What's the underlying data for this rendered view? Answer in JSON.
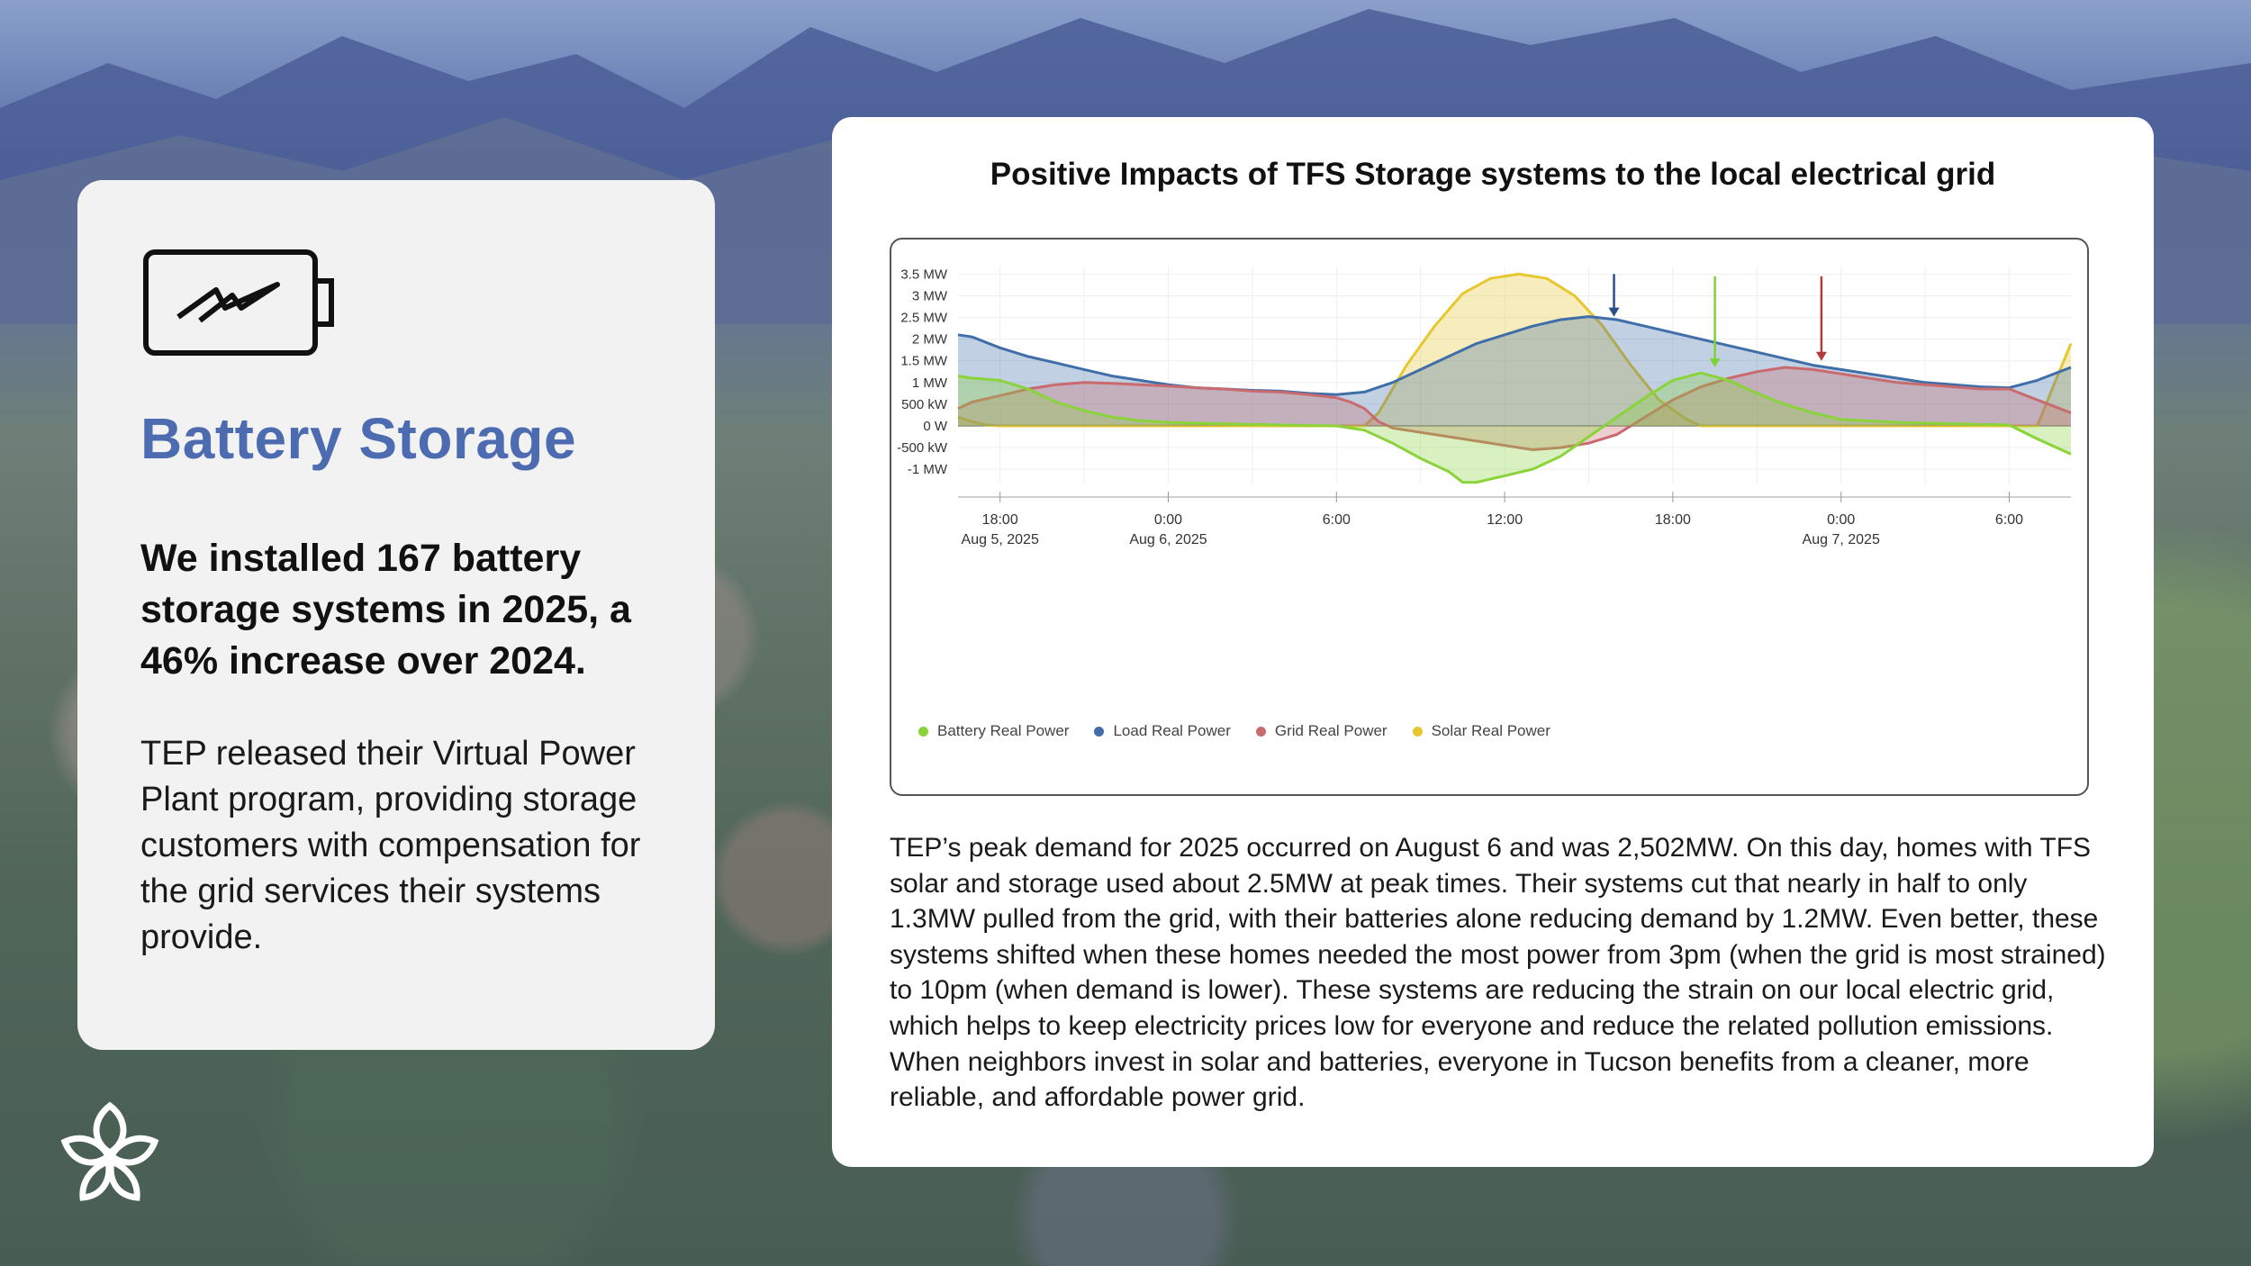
{
  "left_card": {
    "icon": "battery-icon",
    "title": "Battery Storage",
    "headline": "We installed 167 battery storage systems in 2025, a 46% increase over 2024.",
    "body": "TEP released their Virtual Power Plant program, providing storage customers with compensation for the grid services their systems provide."
  },
  "logo": {
    "icon": "flower-logo-icon"
  },
  "right_card": {
    "description": "TEP’s peak demand for 2025 occurred on August 6 and was 2,502MW. On this day, homes with TFS solar and storage used about 2.5MW at peak times. Their systems cut that nearly in half to only 1.3MW pulled from the grid, with their batteries alone reducing demand by 1.2MW. Even better, these systems shifted when these homes needed the most power from 3pm (when the grid is most strained) to 10pm (when demand is lower). These systems are reducing the strain on our local electric grid, which helps to keep electricity prices low for everyone and reduce the related pollution emissions. When neighbors invest in solar and batteries, everyone in Tucson benefits from a cleaner, more reliable, and affordable power grid."
  },
  "chart_data": {
    "type": "area",
    "title": "Positive Impacts of TFS Storage systems to the local electrical grid",
    "xlabel": "",
    "ylabel": "",
    "x_unit": "hours since 18:00 Aug 5, 2025",
    "xlim": [
      -1.5,
      38.2
    ],
    "ylim": [
      -1.35,
      3.55
    ],
    "y_ticks": [
      {
        "v": 3.5,
        "label": "3.5 MW"
      },
      {
        "v": 3,
        "label": "3 MW"
      },
      {
        "v": 2.5,
        "label": "2.5 MW"
      },
      {
        "v": 2,
        "label": "2 MW"
      },
      {
        "v": 1.5,
        "label": "1.5 MW"
      },
      {
        "v": 1,
        "label": "1 MW"
      },
      {
        "v": 0.5,
        "label": "500 kW"
      },
      {
        "v": 0,
        "label": "0 W"
      },
      {
        "v": -0.5,
        "label": "-500 kW"
      },
      {
        "v": -1,
        "label": "-1 MW"
      }
    ],
    "x_ticks": [
      {
        "v": 0,
        "label": "18:00",
        "sub": "Aug 5, 2025"
      },
      {
        "v": 6,
        "label": "0:00",
        "sub": "Aug 6, 2025"
      },
      {
        "v": 12,
        "label": "6:00",
        "sub": ""
      },
      {
        "v": 18,
        "label": "12:00",
        "sub": ""
      },
      {
        "v": 24,
        "label": "18:00",
        "sub": ""
      },
      {
        "v": 30,
        "label": "0:00",
        "sub": "Aug 7, 2025"
      },
      {
        "v": 36,
        "label": "6:00",
        "sub": ""
      }
    ],
    "series": [
      {
        "name": "Solar Real Power",
        "color": "#e6c72f",
        "points": [
          [
            -1.5,
            0.2
          ],
          [
            -1,
            0.1
          ],
          [
            -0.5,
            0.02
          ],
          [
            0,
            0
          ],
          [
            13,
            0
          ],
          [
            13.5,
            0.3
          ],
          [
            14.5,
            1.4
          ],
          [
            15.5,
            2.3
          ],
          [
            16.5,
            3.05
          ],
          [
            17.5,
            3.4
          ],
          [
            18.5,
            3.5
          ],
          [
            19.5,
            3.4
          ],
          [
            20.5,
            3.0
          ],
          [
            21.5,
            2.3
          ],
          [
            22.5,
            1.4
          ],
          [
            23.5,
            0.6
          ],
          [
            24.5,
            0.15
          ],
          [
            25,
            0
          ],
          [
            37,
            0
          ],
          [
            37.5,
            0.8
          ],
          [
            38.2,
            1.9
          ]
        ]
      },
      {
        "name": "Load Real Power",
        "color": "#3f6ea8",
        "points": [
          [
            -1.5,
            2.1
          ],
          [
            -1,
            2.05
          ],
          [
            0,
            1.8
          ],
          [
            1,
            1.6
          ],
          [
            2,
            1.45
          ],
          [
            3,
            1.3
          ],
          [
            4,
            1.15
          ],
          [
            5,
            1.05
          ],
          [
            6,
            0.95
          ],
          [
            7,
            0.88
          ],
          [
            8,
            0.85
          ],
          [
            9,
            0.82
          ],
          [
            10,
            0.8
          ],
          [
            11,
            0.75
          ],
          [
            12,
            0.72
          ],
          [
            13,
            0.78
          ],
          [
            14,
            1.0
          ],
          [
            15,
            1.3
          ],
          [
            16,
            1.6
          ],
          [
            17,
            1.9
          ],
          [
            18,
            2.1
          ],
          [
            19,
            2.3
          ],
          [
            20,
            2.45
          ],
          [
            21,
            2.52
          ],
          [
            22,
            2.45
          ],
          [
            23,
            2.3
          ],
          [
            24,
            2.15
          ],
          [
            25,
            2.0
          ],
          [
            26,
            1.85
          ],
          [
            27,
            1.7
          ],
          [
            28,
            1.55
          ],
          [
            29,
            1.4
          ],
          [
            30,
            1.3
          ],
          [
            31,
            1.2
          ],
          [
            32,
            1.1
          ],
          [
            33,
            1.0
          ],
          [
            34,
            0.95
          ],
          [
            35,
            0.9
          ],
          [
            36,
            0.88
          ],
          [
            37,
            1.05
          ],
          [
            38.2,
            1.35
          ]
        ]
      },
      {
        "name": "Grid Real Power",
        "color": "#c96a6e",
        "points": [
          [
            -1.5,
            0.4
          ],
          [
            -1,
            0.55
          ],
          [
            0,
            0.7
          ],
          [
            1,
            0.85
          ],
          [
            2,
            0.95
          ],
          [
            3,
            1.0
          ],
          [
            4,
            0.98
          ],
          [
            5,
            0.95
          ],
          [
            6,
            0.92
          ],
          [
            7,
            0.88
          ],
          [
            8,
            0.85
          ],
          [
            9,
            0.8
          ],
          [
            10,
            0.78
          ],
          [
            11,
            0.72
          ],
          [
            12,
            0.65
          ],
          [
            12.5,
            0.55
          ],
          [
            13,
            0.4
          ],
          [
            13.5,
            0.1
          ],
          [
            14,
            -0.05
          ],
          [
            15,
            -0.15
          ],
          [
            16,
            -0.25
          ],
          [
            17,
            -0.35
          ],
          [
            18,
            -0.45
          ],
          [
            19,
            -0.55
          ],
          [
            20,
            -0.5
          ],
          [
            21,
            -0.4
          ],
          [
            22,
            -0.2
          ],
          [
            23,
            0.2
          ],
          [
            24,
            0.6
          ],
          [
            25,
            0.9
          ],
          [
            26,
            1.1
          ],
          [
            27,
            1.25
          ],
          [
            28,
            1.35
          ],
          [
            29,
            1.3
          ],
          [
            30,
            1.2
          ],
          [
            31,
            1.1
          ],
          [
            32,
            1.0
          ],
          [
            33,
            0.95
          ],
          [
            34,
            0.9
          ],
          [
            35,
            0.85
          ],
          [
            36,
            0.85
          ],
          [
            37,
            0.6
          ],
          [
            38.2,
            0.3
          ]
        ]
      },
      {
        "name": "Battery Real Power",
        "color": "#8ad33a",
        "points": [
          [
            -1.5,
            1.15
          ],
          [
            -1,
            1.1
          ],
          [
            0,
            1.05
          ],
          [
            1,
            0.85
          ],
          [
            2,
            0.55
          ],
          [
            3,
            0.35
          ],
          [
            4,
            0.2
          ],
          [
            5,
            0.12
          ],
          [
            6,
            0.08
          ],
          [
            8,
            0.05
          ],
          [
            10,
            0.02
          ],
          [
            12,
            0
          ],
          [
            13,
            -0.1
          ],
          [
            14,
            -0.4
          ],
          [
            15,
            -0.75
          ],
          [
            16,
            -1.05
          ],
          [
            16.5,
            -1.3
          ],
          [
            17,
            -1.3
          ],
          [
            18,
            -1.15
          ],
          [
            19,
            -1.0
          ],
          [
            20,
            -0.7
          ],
          [
            21,
            -0.25
          ],
          [
            22,
            0.2
          ],
          [
            23,
            0.65
          ],
          [
            24,
            1.05
          ],
          [
            25,
            1.22
          ],
          [
            26,
            1.05
          ],
          [
            27,
            0.75
          ],
          [
            28,
            0.5
          ],
          [
            29,
            0.3
          ],
          [
            30,
            0.15
          ],
          [
            32,
            0.08
          ],
          [
            34,
            0.05
          ],
          [
            36,
            0.02
          ],
          [
            37,
            -0.3
          ],
          [
            38.2,
            -0.65
          ]
        ]
      }
    ],
    "annotations": [
      {
        "type": "arrow",
        "x": 21.9,
        "y_from": 3.5,
        "y_to": 2.52,
        "color": "#2c4f8a"
      },
      {
        "type": "arrow",
        "x": 25.5,
        "y_from": 3.45,
        "y_to": 1.35,
        "color": "#7ed23a"
      },
      {
        "type": "arrow",
        "x": 29.3,
        "y_from": 3.45,
        "y_to": 1.5,
        "color": "#b23a3a"
      }
    ],
    "legend": [
      "Battery Real Power",
      "Load Real Power",
      "Grid Real Power",
      "Solar Real Power"
    ],
    "legend_position": "bottom-left",
    "grid": true
  }
}
